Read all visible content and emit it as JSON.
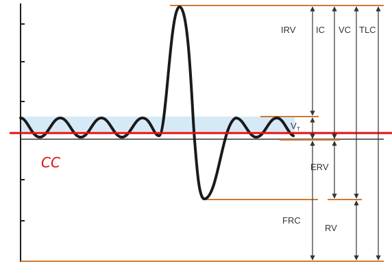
{
  "diagram": {
    "labels": {
      "irv": "IRV",
      "ic": "IC",
      "vc": "VC",
      "tlc": "TLC",
      "vt": "V",
      "vt_sub": "T",
      "erv": "ERV",
      "frc": "FRC",
      "rv": "RV",
      "cc": "CC"
    },
    "colors": {
      "trace": "#1a1a1a",
      "level_lines": "#cc7a33",
      "cc_line": "#e01010",
      "tidal_band": "#d6e9f7",
      "arrows": "#333333"
    }
  }
}
